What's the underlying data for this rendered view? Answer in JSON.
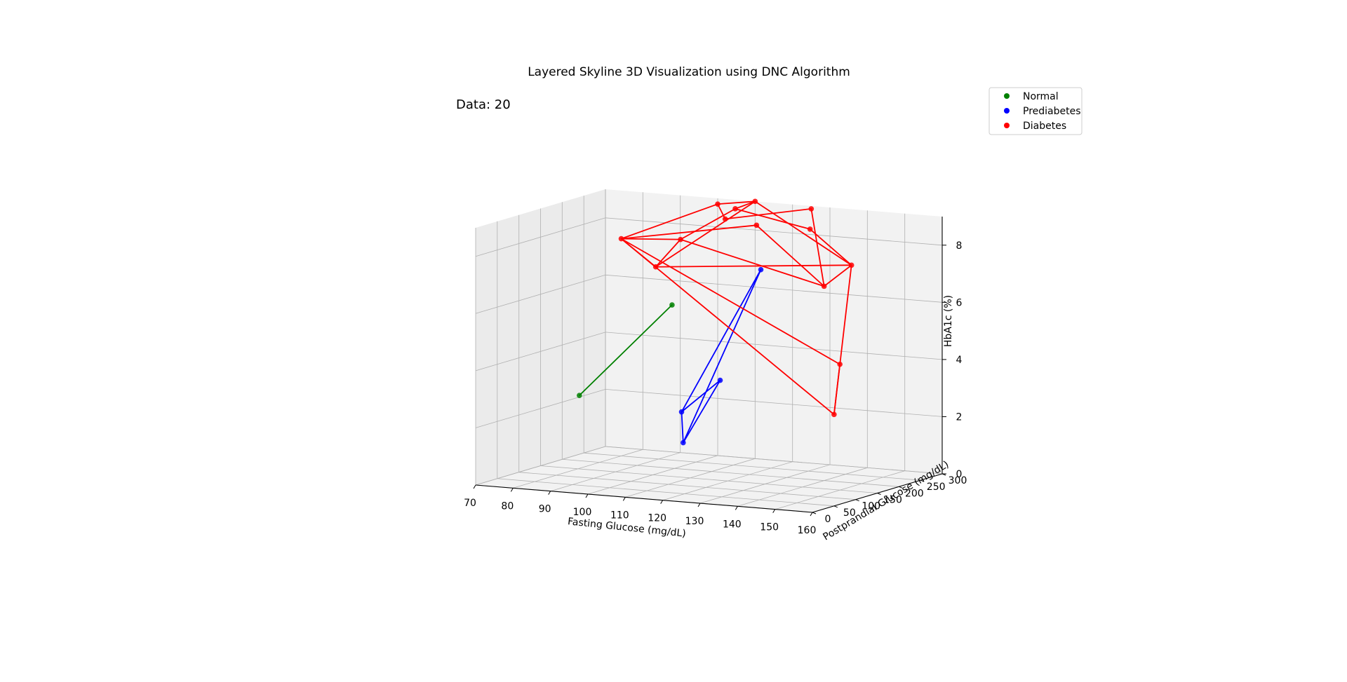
{
  "chart_data": {
    "type": "scatter",
    "subtype": "3d-scatter-with-skyline-lines",
    "title": "Layered Skyline 3D Visualization using DNC Algorithm",
    "annotation": "Data: 20",
    "xlabel": "Fasting Glucose (mg/dL)",
    "ylabel": "Postprandial Glucose (mg/dL)",
    "zlabel": "HbA1c (%)",
    "xlim": [
      70,
      160
    ],
    "ylim": [
      0,
      300
    ],
    "zlim": [
      0,
      9
    ],
    "xticks": [
      70,
      80,
      90,
      100,
      110,
      120,
      130,
      140,
      150,
      160
    ],
    "yticks": [
      0,
      50,
      100,
      150,
      200,
      250,
      300
    ],
    "zticks": [
      0,
      2,
      4,
      6,
      8
    ],
    "grid": true,
    "legend_position": "top-right",
    "series": [
      {
        "name": "Normal",
        "color": "#008000",
        "points": [
          [
            85,
            110,
            2.8
          ],
          [
            93,
            255,
            5.4
          ]
        ],
        "segments": [
          [
            0,
            1
          ]
        ]
      },
      {
        "name": "Prediabetes",
        "color": "#0000ff",
        "points": [
          [
            110,
            130,
            2.4
          ],
          [
            115,
            270,
            6.8
          ],
          [
            118,
            150,
            3.5
          ],
          [
            122,
            30,
            1.9
          ]
        ],
        "segments": [
          [
            0,
            1
          ],
          [
            0,
            2
          ],
          [
            0,
            3
          ],
          [
            1,
            3
          ],
          [
            2,
            3
          ]
        ]
      },
      {
        "name": "Diabetes",
        "color": "#ff0000",
        "points": [
          [
            80,
            250,
            7.6
          ],
          [
            95,
            200,
            7.0
          ],
          [
            97,
            240,
            7.8
          ],
          [
            100,
            300,
            8.8
          ],
          [
            102,
            300,
            8.3
          ],
          [
            107,
            280,
            8.8
          ],
          [
            110,
            300,
            9.0
          ],
          [
            115,
            260,
            8.4
          ],
          [
            125,
            300,
            8.9
          ],
          [
            127,
            280,
            8.3
          ],
          [
            140,
            200,
            6.8
          ],
          [
            145,
            220,
            7.5
          ],
          [
            150,
            150,
            4.4
          ],
          [
            160,
            50,
            3.2
          ]
        ],
        "segments": [
          [
            0,
            3
          ],
          [
            0,
            7
          ],
          [
            0,
            1
          ],
          [
            0,
            13
          ],
          [
            0,
            2
          ],
          [
            0,
            12
          ],
          [
            1,
            2
          ],
          [
            1,
            6
          ],
          [
            1,
            11
          ],
          [
            2,
            10
          ],
          [
            3,
            4
          ],
          [
            3,
            6
          ],
          [
            4,
            8
          ],
          [
            5,
            6
          ],
          [
            5,
            9
          ],
          [
            6,
            11
          ],
          [
            7,
            10
          ],
          [
            8,
            10
          ],
          [
            9,
            11
          ],
          [
            10,
            11
          ],
          [
            11,
            13
          ],
          [
            2,
            5
          ],
          [
            12,
            13
          ]
        ]
      }
    ]
  }
}
